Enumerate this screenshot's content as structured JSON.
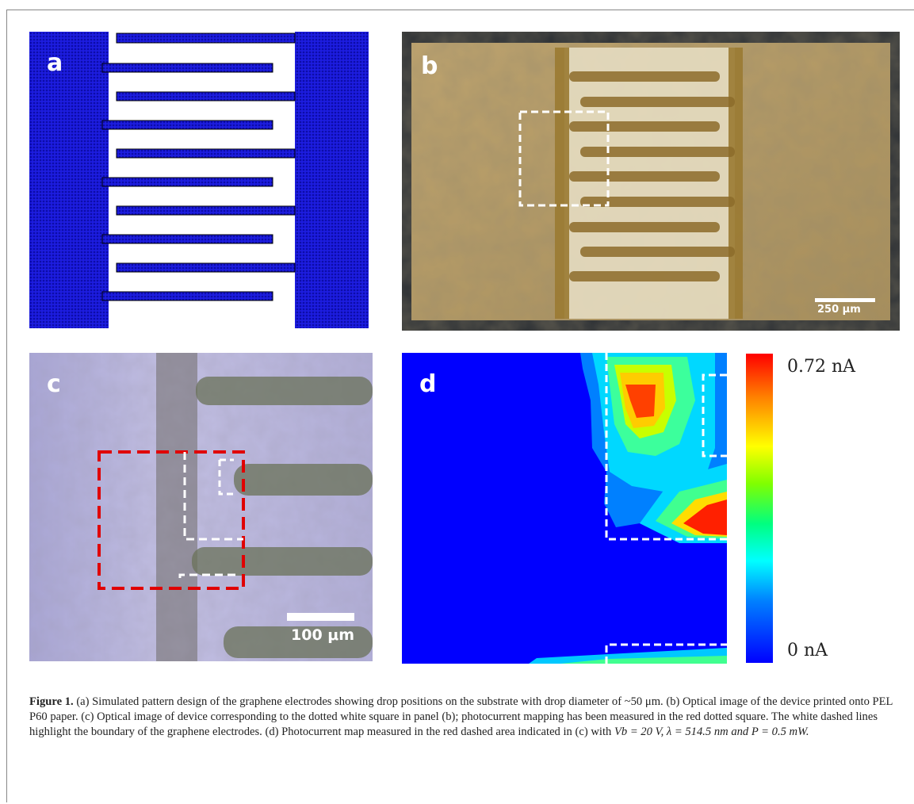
{
  "panels": {
    "a": {
      "label": "a"
    },
    "b": {
      "label": "b",
      "scale_bar": "250 μm"
    },
    "c": {
      "label": "c",
      "scale_bar": "100 μm"
    },
    "d": {
      "label": "d"
    }
  },
  "colorbar": {
    "max_label": "0.72 nA",
    "min_label": "0 nA",
    "max_value": 0.72,
    "min_value": 0,
    "unit": "nA"
  },
  "caption": {
    "figure_label": "Figure 1.",
    "part_a": " (a) Simulated pattern design of the graphene electrodes showing drop positions on the substrate with drop diameter of ",
    "diameter": "~50 μm.",
    "part_b": " (b) Optical image of the device printed onto PEL P60 paper. (c) Optical image of device corresponding to the dotted white square in panel (b); photocurrent mapping has been measured in the red dotted square. The white dashed lines highlight the boundary of the graphene electrodes. (d) Photocurrent map measured in the red dashed area indicated in (c) with ",
    "conditions": "Vb = 20 V, λ = 514.5 nm and P = 0.5 mW."
  },
  "colors": {
    "electrode_blue": "#1a1adc",
    "paper_tan": "#b79a62",
    "heatmap_low": "#0000ff",
    "heatmap_high": "#ff0000"
  }
}
